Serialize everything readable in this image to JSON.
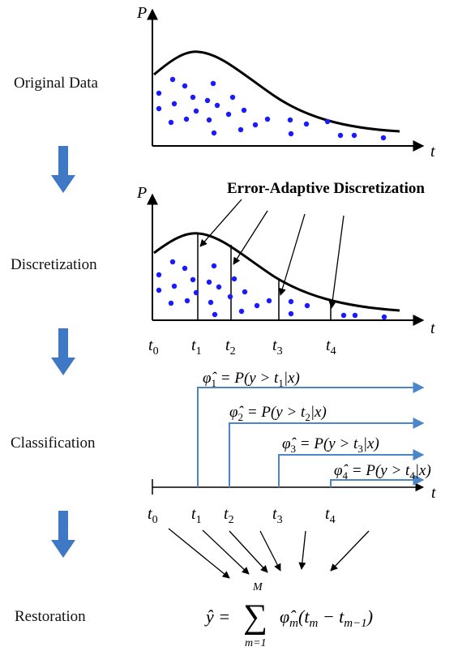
{
  "stages": [
    {
      "label": "Original Data"
    },
    {
      "label": "Discretization"
    },
    {
      "label": "Classification"
    },
    {
      "label": "Restoration"
    }
  ],
  "axes": {
    "y_label": "P",
    "x_label": "t"
  },
  "discretization_title": "Error-Adaptive Discretization",
  "ticks": [
    {
      "base": "t",
      "sub": "0"
    },
    {
      "base": "t",
      "sub": "1"
    },
    {
      "base": "t",
      "sub": "2"
    },
    {
      "base": "t",
      "sub": "3"
    },
    {
      "base": "t",
      "sub": "4"
    }
  ],
  "classifiers": [
    {
      "sym": "φ̂",
      "sub": "1",
      "rest": " = P(y > t",
      "tsub": "1",
      "tail": "|x)"
    },
    {
      "sym": "φ̂",
      "sub": "2",
      "rest": " = P(y > t",
      "tsub": "2",
      "tail": "|x)"
    },
    {
      "sym": "φ̂",
      "sub": "3",
      "rest": " = P(y > t",
      "tsub": "3",
      "tail": "|x)"
    },
    {
      "sym": "φ̂",
      "sub": "4",
      "rest": " = P(y > t",
      "tsub": "4",
      "tail": "|x)"
    }
  ],
  "restoration": {
    "lhs": "ŷ =",
    "sum_upper": "M",
    "sum_lower": "m=1",
    "body": "φ̂",
    "body_sub": "m",
    "paren": "(t",
    "t1_sub": "m",
    "minus": " − t",
    "t2_sub": "m−1",
    "close": ")"
  },
  "colors": {
    "dots": "#1a1aff",
    "blue_lines": "#4a86c8",
    "down_arrows": "#3f78c4",
    "ink": "#000000"
  }
}
